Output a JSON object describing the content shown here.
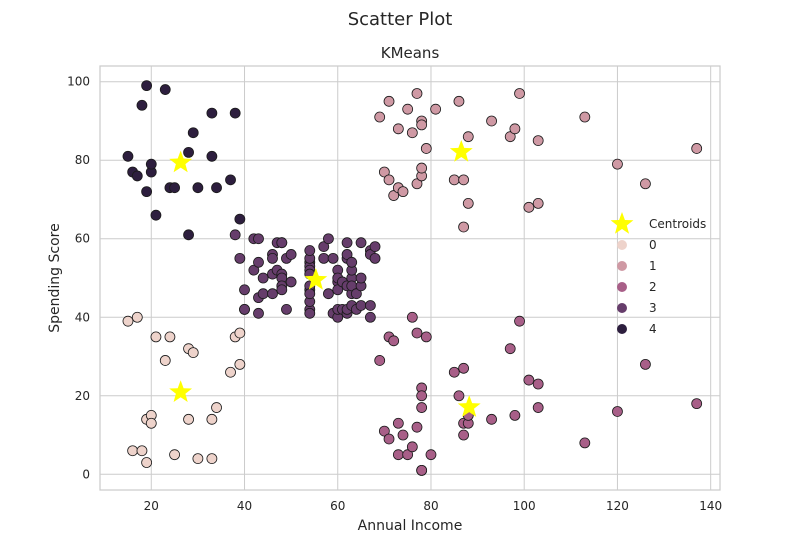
{
  "figure_title": "Scatter Plot",
  "chart_data": {
    "type": "scatter",
    "title": "KMeans",
    "xlabel": "Annual Income",
    "ylabel": "Spending Score",
    "xlim": [
      9,
      142
    ],
    "ylim": [
      -4,
      104
    ],
    "xticks": [
      20,
      40,
      60,
      80,
      100,
      120,
      140
    ],
    "yticks": [
      0,
      20,
      40,
      60,
      80,
      100
    ],
    "grid": true,
    "legend_position": "right",
    "legend_entries": [
      "Centroids",
      "0",
      "1",
      "2",
      "3",
      "4"
    ],
    "series": [
      {
        "name": "0",
        "color": "#eed3cb",
        "points": [
          [
            15,
            39
          ],
          [
            16,
            6
          ],
          [
            17,
            40
          ],
          [
            18,
            6
          ],
          [
            19,
            3
          ],
          [
            19,
            14
          ],
          [
            20,
            15
          ],
          [
            20,
            13
          ],
          [
            21,
            35
          ],
          [
            23,
            29
          ],
          [
            24,
            35
          ],
          [
            25,
            5
          ],
          [
            28,
            14
          ],
          [
            28,
            32
          ],
          [
            29,
            31
          ],
          [
            30,
            4
          ],
          [
            33,
            4
          ],
          [
            33,
            14
          ],
          [
            34,
            17
          ],
          [
            37,
            26
          ],
          [
            38,
            35
          ],
          [
            39,
            36
          ],
          [
            39,
            28
          ]
        ]
      },
      {
        "name": "1",
        "color": "#cf99a4",
        "points": [
          [
            69,
            91
          ],
          [
            70,
            77
          ],
          [
            71,
            75
          ],
          [
            71,
            95
          ],
          [
            72,
            71
          ],
          [
            73,
            73
          ],
          [
            73,
            88
          ],
          [
            74,
            72
          ],
          [
            75,
            93
          ],
          [
            76,
            87
          ],
          [
            77,
            74
          ],
          [
            77,
            97
          ],
          [
            78,
            90
          ],
          [
            78,
            76
          ],
          [
            78,
            89
          ],
          [
            78,
            78
          ],
          [
            79,
            83
          ],
          [
            81,
            93
          ],
          [
            85,
            75
          ],
          [
            86,
            95
          ],
          [
            87,
            63
          ],
          [
            87,
            75
          ],
          [
            88,
            69
          ],
          [
            88,
            86
          ],
          [
            93,
            90
          ],
          [
            97,
            86
          ],
          [
            98,
            88
          ],
          [
            99,
            97
          ],
          [
            101,
            68
          ],
          [
            103,
            85
          ],
          [
            103,
            69
          ],
          [
            113,
            91
          ],
          [
            120,
            79
          ],
          [
            126,
            74
          ],
          [
            137,
            83
          ]
        ]
      },
      {
        "name": "2",
        "color": "#a85f88",
        "points": [
          [
            69,
            29
          ],
          [
            70,
            11
          ],
          [
            71,
            9
          ],
          [
            71,
            35
          ],
          [
            72,
            34
          ],
          [
            73,
            5
          ],
          [
            73,
            13
          ],
          [
            74,
            10
          ],
          [
            75,
            5
          ],
          [
            76,
            7
          ],
          [
            77,
            12
          ],
          [
            78,
            22
          ],
          [
            78,
            20
          ],
          [
            78,
            17
          ],
          [
            78,
            1
          ],
          [
            78,
            1
          ],
          [
            80,
            5
          ],
          [
            85,
            26
          ],
          [
            86,
            20
          ],
          [
            87,
            27
          ],
          [
            87,
            13
          ],
          [
            87,
            10
          ],
          [
            88,
            13
          ],
          [
            88,
            15
          ],
          [
            93,
            14
          ],
          [
            97,
            32
          ],
          [
            98,
            15
          ],
          [
            99,
            39
          ],
          [
            101,
            24
          ],
          [
            103,
            17
          ],
          [
            103,
            23
          ],
          [
            113,
            8
          ],
          [
            120,
            16
          ],
          [
            126,
            28
          ],
          [
            137,
            18
          ],
          [
            76,
            40
          ],
          [
            77,
            36
          ],
          [
            79,
            35
          ]
        ]
      },
      {
        "name": "3",
        "color": "#663d6b",
        "points": [
          [
            38,
            61
          ],
          [
            39,
            55
          ],
          [
            40,
            47
          ],
          [
            40,
            42
          ],
          [
            40,
            42
          ],
          [
            42,
            52
          ],
          [
            42,
            60
          ],
          [
            43,
            54
          ],
          [
            43,
            60
          ],
          [
            43,
            45
          ],
          [
            43,
            41
          ],
          [
            44,
            50
          ],
          [
            44,
            46
          ],
          [
            46,
            51
          ],
          [
            46,
            46
          ],
          [
            46,
            56
          ],
          [
            46,
            55
          ],
          [
            47,
            52
          ],
          [
            47,
            59
          ],
          [
            48,
            51
          ],
          [
            48,
            59
          ],
          [
            48,
            50
          ],
          [
            48,
            48
          ],
          [
            48,
            59
          ],
          [
            48,
            47
          ],
          [
            49,
            55
          ],
          [
            49,
            42
          ],
          [
            50,
            49
          ],
          [
            50,
            56
          ],
          [
            54,
            47
          ],
          [
            54,
            54
          ],
          [
            54,
            53
          ],
          [
            54,
            48
          ],
          [
            54,
            52
          ],
          [
            54,
            42
          ],
          [
            54,
            51
          ],
          [
            54,
            55
          ],
          [
            54,
            41
          ],
          [
            54,
            44
          ],
          [
            54,
            57
          ],
          [
            54,
            46
          ],
          [
            57,
            58
          ],
          [
            57,
            55
          ],
          [
            58,
            60
          ],
          [
            58,
            46
          ],
          [
            59,
            55
          ],
          [
            59,
            41
          ],
          [
            60,
            49
          ],
          [
            60,
            40
          ],
          [
            60,
            42
          ],
          [
            60,
            52
          ],
          [
            60,
            47
          ],
          [
            60,
            50
          ],
          [
            61,
            42
          ],
          [
            61,
            49
          ],
          [
            62,
            41
          ],
          [
            62,
            48
          ],
          [
            62,
            59
          ],
          [
            62,
            55
          ],
          [
            62,
            56
          ],
          [
            62,
            42
          ],
          [
            63,
            50
          ],
          [
            63,
            46
          ],
          [
            63,
            43
          ],
          [
            63,
            48
          ],
          [
            63,
            52
          ],
          [
            63,
            54
          ],
          [
            64,
            42
          ],
          [
            64,
            46
          ],
          [
            65,
            48
          ],
          [
            65,
            50
          ],
          [
            65,
            43
          ],
          [
            65,
            59
          ],
          [
            67,
            43
          ],
          [
            67,
            57
          ],
          [
            67,
            56
          ],
          [
            67,
            40
          ],
          [
            68,
            58
          ],
          [
            68,
            55
          ]
        ]
      },
      {
        "name": "4",
        "color": "#2d1e3e",
        "points": [
          [
            15,
            81
          ],
          [
            16,
            77
          ],
          [
            17,
            76
          ],
          [
            18,
            94
          ],
          [
            19,
            72
          ],
          [
            19,
            99
          ],
          [
            20,
            77
          ],
          [
            20,
            79
          ],
          [
            21,
            66
          ],
          [
            23,
            98
          ],
          [
            24,
            73
          ],
          [
            25,
            73
          ],
          [
            28,
            82
          ],
          [
            28,
            61
          ],
          [
            29,
            87
          ],
          [
            30,
            73
          ],
          [
            33,
            92
          ],
          [
            33,
            81
          ],
          [
            34,
            73
          ],
          [
            37,
            75
          ],
          [
            38,
            92
          ],
          [
            39,
            65
          ]
        ]
      }
    ],
    "centroids": {
      "name": "Centroids",
      "color": "#ffff00",
      "points": [
        [
          26.3,
          79.4
        ],
        [
          86.5,
          82.1
        ],
        [
          55.3,
          49.5
        ],
        [
          88.2,
          17.1
        ],
        [
          26.3,
          20.9
        ]
      ]
    }
  }
}
